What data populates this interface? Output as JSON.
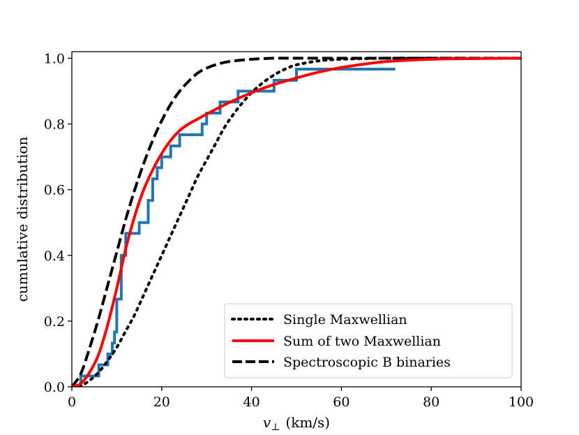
{
  "chart_data": {
    "type": "line",
    "xlabel_symbol": "v",
    "xlabel_subscript": "⊥",
    "xlabel_unit": "(km/s)",
    "ylabel": "cumulative distribution",
    "xlim": [
      0,
      100
    ],
    "ylim": [
      0,
      1.02
    ],
    "xticks": [
      0,
      20,
      40,
      60,
      80,
      100
    ],
    "xtick_labels": [
      "0",
      "20",
      "40",
      "60",
      "80",
      "100"
    ],
    "yticks": [
      0.0,
      0.2,
      0.4,
      0.6,
      0.8,
      1.0
    ],
    "ytick_labels": [
      "0.0",
      "0.2",
      "0.4",
      "0.6",
      "0.8",
      "1.0"
    ],
    "grid": false,
    "legend_position": "lower-right",
    "colors": {
      "empirical": "#1f77b4",
      "single": "#000000",
      "sum": "#ff0000",
      "spectro": "#000000"
    },
    "empirical_step": {
      "x": [
        0,
        2,
        6,
        8,
        9,
        9.5,
        10,
        11,
        12,
        15,
        17,
        18,
        19,
        20,
        22,
        24,
        29,
        30,
        33,
        36,
        37,
        41,
        45,
        50,
        55,
        72
      ],
      "y": [
        0,
        0.033,
        0.067,
        0.1,
        0.133,
        0.167,
        0.267,
        0.4,
        0.467,
        0.5,
        0.567,
        0.633,
        0.667,
        0.7,
        0.733,
        0.767,
        0.8,
        0.833,
        0.867,
        0.867,
        0.9,
        0.9,
        0.933,
        0.967,
        0.967,
        0.967
      ]
    },
    "series": [
      {
        "name": "Single Maxwellian",
        "style": "dotted",
        "x": [
          0,
          2,
          4,
          6,
          8,
          10,
          12,
          14,
          16,
          18,
          20,
          22,
          24,
          26,
          28,
          30,
          32,
          34,
          36,
          38,
          40,
          42,
          44,
          46,
          48,
          50,
          55,
          60,
          70,
          80,
          100
        ],
        "y": [
          0,
          0.003,
          0.02,
          0.045,
          0.08,
          0.12,
          0.17,
          0.22,
          0.28,
          0.34,
          0.4,
          0.46,
          0.52,
          0.58,
          0.64,
          0.69,
          0.74,
          0.79,
          0.83,
          0.865,
          0.895,
          0.92,
          0.94,
          0.957,
          0.97,
          0.98,
          0.992,
          0.997,
          1.0,
          1.0,
          1.0
        ]
      },
      {
        "name": "Sum of two Maxwellian",
        "style": "solid",
        "x": [
          0,
          2,
          4,
          6,
          8,
          10,
          12,
          14,
          16,
          18,
          20,
          22,
          24,
          26,
          28,
          30,
          35,
          40,
          45,
          50,
          55,
          60,
          65,
          70,
          80,
          90,
          100
        ],
        "y": [
          0,
          0.01,
          0.045,
          0.1,
          0.19,
          0.3,
          0.42,
          0.52,
          0.6,
          0.66,
          0.71,
          0.75,
          0.78,
          0.8,
          0.815,
          0.83,
          0.865,
          0.895,
          0.92,
          0.94,
          0.958,
          0.972,
          0.982,
          0.99,
          0.997,
          0.999,
          1.0
        ]
      },
      {
        "name": "Spectroscopic B binaries",
        "style": "dashed",
        "x": [
          0,
          2,
          4,
          6,
          8,
          10,
          12,
          14,
          16,
          18,
          20,
          22,
          24,
          26,
          28,
          30,
          32,
          35,
          40,
          45,
          50,
          60,
          80,
          100
        ],
        "y": [
          0,
          0.04,
          0.12,
          0.21,
          0.31,
          0.41,
          0.51,
          0.6,
          0.68,
          0.75,
          0.81,
          0.86,
          0.9,
          0.93,
          0.955,
          0.97,
          0.98,
          0.99,
          0.997,
          1.0,
          1.0,
          1.0,
          1.0,
          1.0
        ]
      }
    ]
  }
}
